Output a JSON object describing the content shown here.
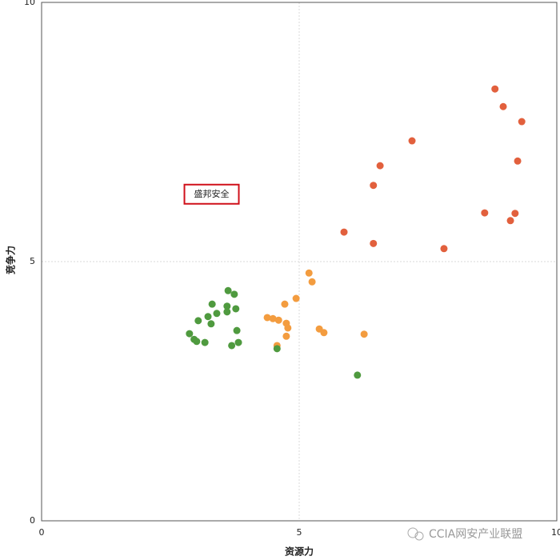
{
  "chart_data": {
    "type": "scatter",
    "x_label": "资源力",
    "y_label": "竞争力",
    "xlim": [
      0,
      10
    ],
    "ylim": [
      0,
      10
    ],
    "xticks": [
      0,
      5,
      10
    ],
    "yticks": [
      0,
      5,
      10
    ],
    "grid": true,
    "annotation": {
      "text": "盛邦安全",
      "x": 3.3,
      "y": 6.3
    },
    "watermark": "CCIA网安产业联盟",
    "series": [
      {
        "color": "#e2603d",
        "x": [
          8.8,
          8.96,
          9.32,
          7.19,
          9.24,
          6.57,
          6.44,
          8.6,
          9.19,
          9.1,
          5.87,
          6.44,
          7.81
        ],
        "y": [
          8.33,
          7.99,
          7.7,
          7.33,
          6.94,
          6.85,
          6.47,
          5.94,
          5.93,
          5.79,
          5.57,
          5.35,
          5.25
        ]
      },
      {
        "color": "#f39c3f",
        "x": [
          5.19,
          5.25,
          4.94,
          4.72,
          4.38,
          4.49,
          4.6,
          4.75,
          4.78,
          4.75,
          5.39,
          5.48,
          6.26,
          4.57
        ],
        "y": [
          4.78,
          4.61,
          4.29,
          4.18,
          3.92,
          3.9,
          3.87,
          3.81,
          3.72,
          3.56,
          3.7,
          3.63,
          3.6,
          3.38
        ]
      },
      {
        "color": "#4f9a3f",
        "x": [
          3.62,
          3.74,
          3.31,
          3.6,
          3.77,
          3.4,
          3.6,
          3.04,
          3.23,
          3.29,
          2.87,
          2.96,
          3.01,
          3.17,
          3.79,
          3.82,
          3.69,
          4.57,
          6.13
        ],
        "y": [
          4.44,
          4.37,
          4.18,
          4.14,
          4.09,
          4.0,
          4.03,
          3.86,
          3.94,
          3.8,
          3.61,
          3.5,
          3.46,
          3.44,
          3.67,
          3.44,
          3.38,
          3.32,
          2.81
        ]
      }
    ]
  }
}
